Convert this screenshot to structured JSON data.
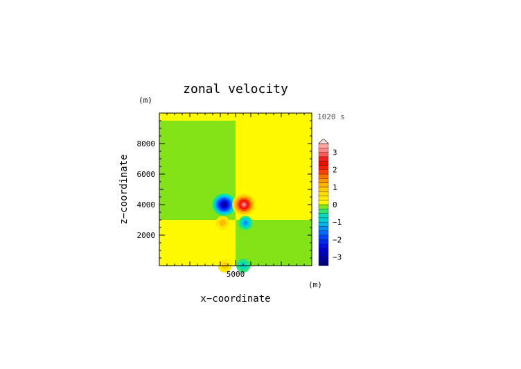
{
  "chart_data": {
    "type": "heatmap",
    "title": "zonal velocity",
    "xlabel": "x−coordinate",
    "ylabel": "z−coordinate",
    "x_unit": "(m)",
    "y_unit": "(m)",
    "time_label": "1020 s",
    "xlim": [
      0,
      10000
    ],
    "ylim": [
      0,
      10000
    ],
    "x_ticks": [
      {
        "value": 5000,
        "label": "5000"
      }
    ],
    "y_ticks": [
      {
        "value": 2000,
        "label": "2000"
      },
      {
        "value": 4000,
        "label": "4000"
      },
      {
        "value": 6000,
        "label": "6000"
      },
      {
        "value": 8000,
        "label": "8000"
      }
    ],
    "colorbar": {
      "min": -3.5,
      "max": 3.5,
      "step": 0.25,
      "labels": [
        {
          "value": 3,
          "label": "3"
        },
        {
          "value": 2,
          "label": "2"
        },
        {
          "value": 1,
          "label": "1"
        },
        {
          "value": 0,
          "label": "0"
        },
        {
          "value": -1,
          "label": "−1"
        },
        {
          "value": -2,
          "label": "−2"
        },
        {
          "value": -3,
          "label": "−3"
        }
      ]
    },
    "background_regions": [
      {
        "x": [
          0,
          5000
        ],
        "z": [
          3000,
          9500
        ],
        "value": -0.1
      },
      {
        "x": [
          5000,
          10000
        ],
        "z": [
          3000,
          9500
        ],
        "value": 0.1
      },
      {
        "x": [
          0,
          5000
        ],
        "z": [
          0,
          3000
        ],
        "value": 0.1
      },
      {
        "x": [
          5000,
          10000
        ],
        "z": [
          0,
          3000
        ],
        "value": -0.1
      },
      {
        "x": [
          0,
          10000
        ],
        "z": [
          9500,
          10000
        ],
        "value": 0.1
      }
    ],
    "features": [
      {
        "x": 4250,
        "z": 4000,
        "value": -3.2
      },
      {
        "x": 5550,
        "z": 4000,
        "value": 3.2
      },
      {
        "x": 4150,
        "z": 2800,
        "value": 1.0
      },
      {
        "x": 5650,
        "z": 2800,
        "value": -1.3
      },
      {
        "x": 4300,
        "z": 0,
        "value": 0.8
      },
      {
        "x": 5500,
        "z": 0,
        "value": -0.8
      }
    ]
  }
}
